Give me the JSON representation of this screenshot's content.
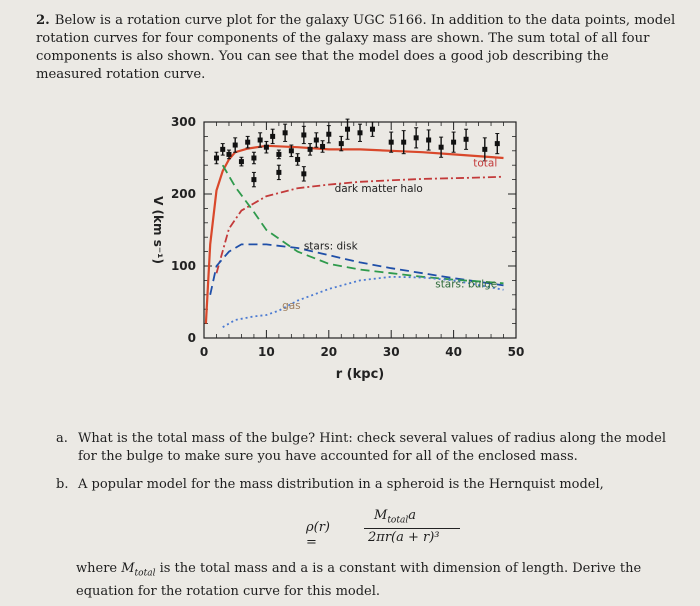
{
  "question": {
    "number": "2.",
    "text": "Below is a rotation curve plot for the galaxy UGC 5166. In addition to the data points, model rotation curves for four components of the galaxy mass are shown. The sum total of all four components is also shown. You can see that the model does a good job describing the measured rotation curve."
  },
  "chart_data": {
    "type": "line",
    "xlabel": "r (kpc)",
    "ylabel": "V (km s⁻¹)",
    "xlim": [
      0,
      50
    ],
    "ylim": [
      0,
      300
    ],
    "x_ticks": [
      "0",
      "10",
      "20",
      "30",
      "40",
      "50"
    ],
    "y_ticks": [
      "0",
      "100",
      "200",
      "300"
    ],
    "series": [
      {
        "name": "total",
        "color": "#d9482b",
        "style": "solid",
        "x": [
          0.3,
          1,
          2,
          3,
          4,
          5,
          7,
          10,
          15,
          20,
          25,
          30,
          35,
          40,
          45,
          48
        ],
        "y": [
          20,
          130,
          205,
          232,
          248,
          258,
          263,
          267,
          265,
          262,
          262,
          260,
          258,
          255,
          252,
          250
        ]
      },
      {
        "name": "dark matter halo",
        "color": "#c33a3a",
        "style": "dashdot",
        "x": [
          2,
          4,
          6,
          10,
          15,
          20,
          25,
          30,
          35,
          40,
          45,
          48
        ],
        "y": [
          90,
          152,
          177,
          197,
          208,
          213,
          217,
          219,
          221,
          222,
          223,
          224
        ]
      },
      {
        "name": "stars: disk",
        "color": "#1f4fa8",
        "style": "dashed",
        "x": [
          1,
          2,
          3,
          4,
          6,
          8,
          10,
          15,
          20,
          25,
          30,
          35,
          40,
          45,
          48
        ],
        "y": [
          60,
          100,
          110,
          120,
          130,
          130,
          130,
          125,
          115,
          105,
          97,
          90,
          83,
          77,
          73
        ]
      },
      {
        "name": "stars: bulge",
        "color": "#2f9a4c",
        "style": "dashed",
        "x": [
          3,
          5,
          8,
          10,
          15,
          20,
          25,
          30,
          35,
          40,
          45,
          48
        ],
        "y": [
          240,
          210,
          175,
          150,
          120,
          103,
          95,
          90,
          85,
          81,
          78,
          76
        ]
      },
      {
        "name": "gas",
        "color": "#4c7bd2",
        "style": "dotted",
        "x": [
          3,
          5,
          8,
          10,
          12,
          15,
          20,
          25,
          30,
          35,
          40,
          45,
          48
        ],
        "y": [
          15,
          25,
          30,
          32,
          38,
          52,
          68,
          80,
          85,
          84,
          80,
          72,
          67
        ]
      }
    ],
    "points": [
      {
        "x": 2,
        "y": 250,
        "err": 8
      },
      {
        "x": 3,
        "y": 262,
        "err": 8
      },
      {
        "x": 4,
        "y": 255,
        "err": 6
      },
      {
        "x": 5,
        "y": 268,
        "err": 10
      },
      {
        "x": 6,
        "y": 245,
        "err": 6
      },
      {
        "x": 7,
        "y": 272,
        "err": 8
      },
      {
        "x": 8,
        "y": 250,
        "err": 8
      },
      {
        "x": 9,
        "y": 275,
        "err": 10
      },
      {
        "x": 10,
        "y": 265,
        "err": 8
      },
      {
        "x": 11,
        "y": 280,
        "err": 10
      },
      {
        "x": 12,
        "y": 255,
        "err": 6
      },
      {
        "x": 13,
        "y": 285,
        "err": 12
      },
      {
        "x": 14,
        "y": 260,
        "err": 8
      },
      {
        "x": 15,
        "y": 248,
        "err": 8
      },
      {
        "x": 16,
        "y": 282,
        "err": 12
      },
      {
        "x": 17,
        "y": 262,
        "err": 8
      },
      {
        "x": 18,
        "y": 275,
        "err": 10
      },
      {
        "x": 19,
        "y": 266,
        "err": 8
      },
      {
        "x": 20,
        "y": 283,
        "err": 12
      },
      {
        "x": 22,
        "y": 270,
        "err": 10
      },
      {
        "x": 23,
        "y": 290,
        "err": 14
      },
      {
        "x": 25,
        "y": 285,
        "err": 12
      },
      {
        "x": 27,
        "y": 290,
        "err": 10
      },
      {
        "x": 30,
        "y": 272,
        "err": 14
      },
      {
        "x": 32,
        "y": 272,
        "err": 16
      },
      {
        "x": 34,
        "y": 278,
        "err": 14
      },
      {
        "x": 36,
        "y": 275,
        "err": 14
      },
      {
        "x": 38,
        "y": 265,
        "err": 14
      },
      {
        "x": 40,
        "y": 272,
        "err": 14
      },
      {
        "x": 42,
        "y": 276,
        "err": 14
      },
      {
        "x": 45,
        "y": 262,
        "err": 16
      },
      {
        "x": 47,
        "y": 270,
        "err": 14
      },
      {
        "x": 8,
        "y": 220,
        "err": 10
      },
      {
        "x": 12,
        "y": 230,
        "err": 10
      },
      {
        "x": 16,
        "y": 228,
        "err": 10
      }
    ],
    "annotations": [
      "total",
      "dark matter halo",
      "stars: disk",
      "stars: bulge",
      "gas"
    ]
  },
  "parts": [
    {
      "label": "a.",
      "text": "What is the total mass of the bulge? Hint: check several values of radius along the model for the bulge to make sure you have accounted for all of the enclosed mass."
    },
    {
      "label": "b.",
      "text": "A popular model for the mass distribution in a spheroid is the Hernquist model,"
    }
  ],
  "formula": {
    "lhs": "ρ(r) =",
    "numerator": "M",
    "numerator_sub": "total",
    "numerator_tail": "a",
    "denominator": "2πr(a + r)³"
  },
  "closing": {
    "pre": "where ",
    "m": "M",
    "m_sub": "total",
    "post": " is the total mass and a is a constant with dimension of length. Derive the equation for the rotation curve for this model."
  }
}
